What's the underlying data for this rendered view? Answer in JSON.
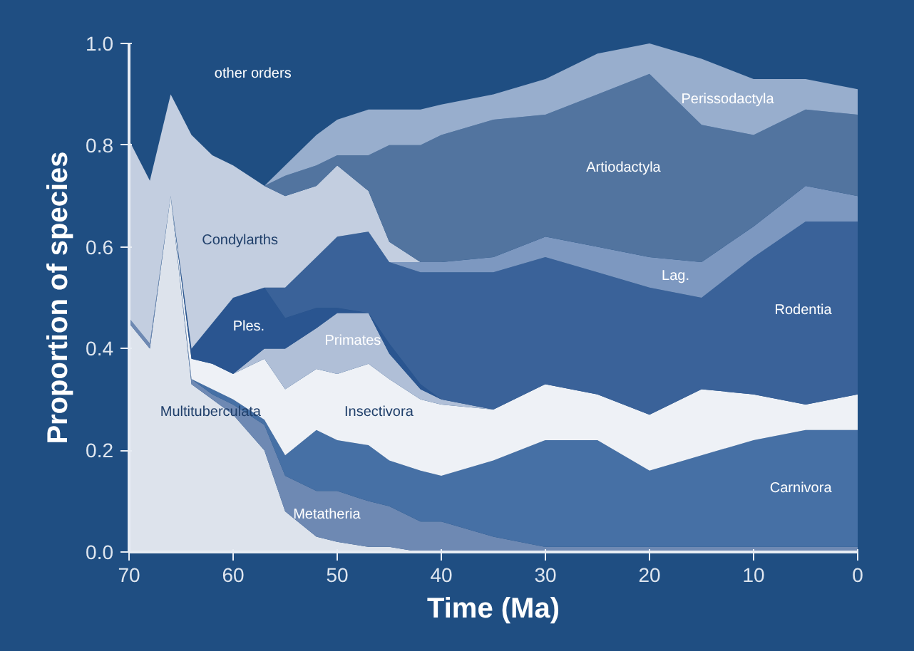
{
  "chart_data": {
    "type": "area",
    "stacked": true,
    "xlabel": "Time (Ma)",
    "ylabel": "Proportion of species",
    "x": [
      70,
      68,
      66,
      64,
      62,
      60,
      57,
      55,
      52,
      50,
      47,
      45,
      42,
      40,
      35,
      30,
      25,
      20,
      15,
      10,
      5,
      0
    ],
    "xlim": [
      70,
      0
    ],
    "xticks": [
      70,
      60,
      50,
      40,
      30,
      20,
      10,
      0
    ],
    "ylim": [
      0,
      1
    ],
    "yticks": [
      {
        "value": 0,
        "label": "0.0"
      },
      {
        "value": 0.2,
        "label": "0.2"
      },
      {
        "value": 0.4,
        "label": "0.4"
      },
      {
        "value": 0.6,
        "label": "0.6"
      },
      {
        "value": 0.8,
        "label": "0.8"
      },
      {
        "value": 1,
        "label": "1.0"
      }
    ],
    "grid": false,
    "legend": false,
    "annotations": [
      "other orders"
    ],
    "series": [
      {
        "name": "Multituberculata",
        "color": "#dde3ec",
        "values": [
          0.45,
          0.4,
          0.7,
          0.33,
          0.3,
          0.27,
          0.2,
          0.08,
          0.03,
          0.02,
          0.01,
          0.01,
          0,
          null,
          null,
          null,
          null,
          null,
          null,
          null,
          null,
          null
        ]
      },
      {
        "name": "Metatheria",
        "color": "#6e89b3",
        "values": [
          0.01,
          0.01,
          0,
          0.01,
          0.01,
          0.02,
          0.05,
          0.07,
          0.09,
          0.1,
          0.09,
          0.08,
          0.06,
          0.06,
          0.03,
          0.01,
          0.01,
          0.01,
          0.01,
          0.01,
          0.01,
          0.01
        ]
      },
      {
        "name": "Carnivora",
        "color": "#4670a5",
        "values": [
          null,
          null,
          null,
          0,
          0.01,
          0.01,
          0.01,
          0.04,
          0.12,
          0.1,
          0.11,
          0.09,
          0.1,
          0.09,
          0.15,
          0.21,
          0.21,
          0.15,
          0.18,
          0.21,
          0.23,
          0.23
        ]
      },
      {
        "name": "Insectivora",
        "color": "#eef1f6",
        "values": [
          null,
          null,
          0,
          0.04,
          0.05,
          0.05,
          0.12,
          0.13,
          0.12,
          0.13,
          0.16,
          0.16,
          0.14,
          0.14,
          0.1,
          0.11,
          0.09,
          0.11,
          0.13,
          0.09,
          0.05,
          0.07
        ]
      },
      {
        "name": "Primates",
        "color": "#b0bfd7",
        "values": [
          null,
          null,
          null,
          null,
          null,
          0,
          0.02,
          0.08,
          0.08,
          0.12,
          0.1,
          0.05,
          0.02,
          0.01,
          0,
          null,
          null,
          null,
          null,
          null,
          null,
          null
        ]
      },
      {
        "name": "Ples.",
        "color": "#2a5590",
        "values": [
          null,
          null,
          0,
          0.02,
          0.08,
          0.15,
          0.12,
          0.06,
          0.04,
          0.01,
          0,
          0.02,
          0.01,
          0,
          null,
          null,
          null,
          null,
          null,
          null,
          null,
          null
        ]
      },
      {
        "name": "Rodentia",
        "color": "#3a6299",
        "values": [
          null,
          null,
          null,
          null,
          null,
          null,
          0,
          0.06,
          0.1,
          0.14,
          0.16,
          0.16,
          0.22,
          0.25,
          0.27,
          0.25,
          0.24,
          0.25,
          0.18,
          0.27,
          0.36,
          0.34
        ]
      },
      {
        "name": "Lag.",
        "color": "#7d98c0",
        "values": [
          null,
          null,
          null,
          null,
          null,
          null,
          null,
          null,
          null,
          null,
          null,
          0,
          0.02,
          0.02,
          0.03,
          0.04,
          0.05,
          0.06,
          0.07,
          0.06,
          0.07,
          0.05
        ]
      },
      {
        "name": "Condylarths",
        "color": "#c3cee0",
        "values": [
          0.35,
          0.32,
          0.2,
          0.42,
          0.33,
          0.26,
          0.2,
          0.18,
          0.14,
          0.14,
          0.08,
          0.04,
          0,
          null,
          null,
          null,
          null,
          null,
          null,
          null,
          null,
          null
        ]
      },
      {
        "name": "Artiodactyla",
        "color": "#52749f",
        "values": [
          null,
          null,
          null,
          null,
          null,
          null,
          0,
          0.04,
          0.04,
          0.02,
          0.07,
          0.19,
          0.23,
          0.25,
          0.27,
          0.24,
          0.3,
          0.36,
          0.27,
          0.18,
          0.15,
          0.16
        ]
      },
      {
        "name": "Perissodactyla",
        "color": "#98aecd",
        "values": [
          null,
          null,
          null,
          null,
          null,
          null,
          0,
          0.02,
          0.06,
          0.07,
          0.09,
          0.07,
          0.07,
          0.06,
          0.05,
          0.07,
          0.08,
          0.06,
          0.13,
          0.11,
          0.06,
          0.05
        ]
      }
    ]
  }
}
